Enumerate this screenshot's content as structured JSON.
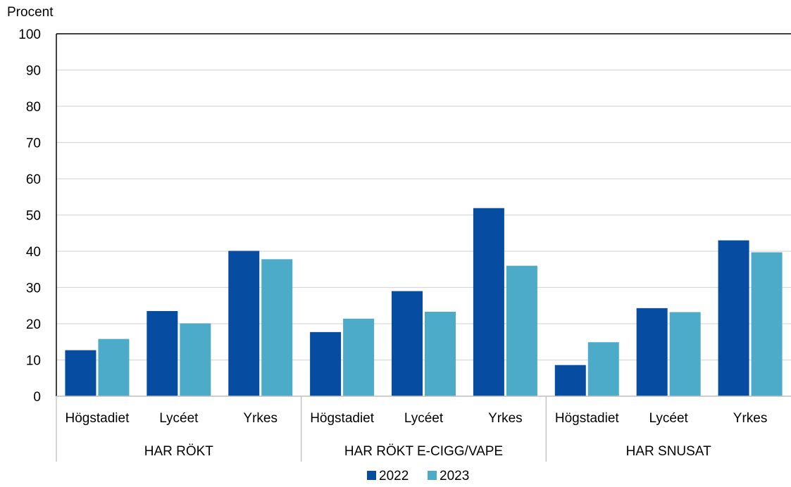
{
  "chart_data": {
    "type": "bar",
    "ylabel": "Procent",
    "ylim": [
      0,
      100
    ],
    "yticks": [
      0,
      10,
      20,
      30,
      40,
      50,
      60,
      70,
      80,
      90,
      100
    ],
    "grid": true,
    "legend_position": "bottom",
    "groups": [
      {
        "label": "HAR RÖKT",
        "categories": [
          "Högstadiet",
          "Lycéet",
          "Yrkes"
        ]
      },
      {
        "label": "HAR RÖKT E-CIGG/VAPE",
        "categories": [
          "Högstadiet",
          "Lycéet",
          "Yrkes"
        ]
      },
      {
        "label": "HAR SNUSAT",
        "categories": [
          "Högstadiet",
          "Lycéet",
          "Yrkes"
        ]
      }
    ],
    "series": [
      {
        "name": "2022",
        "color": "#064da1",
        "values": [
          12.7,
          23.5,
          40.1,
          17.7,
          29.0,
          51.9,
          8.6,
          24.3,
          43.0
        ]
      },
      {
        "name": "2023",
        "color": "#4babc9",
        "values": [
          15.8,
          20.1,
          37.8,
          21.4,
          23.3,
          36.0,
          14.9,
          23.2,
          39.7
        ]
      }
    ]
  }
}
